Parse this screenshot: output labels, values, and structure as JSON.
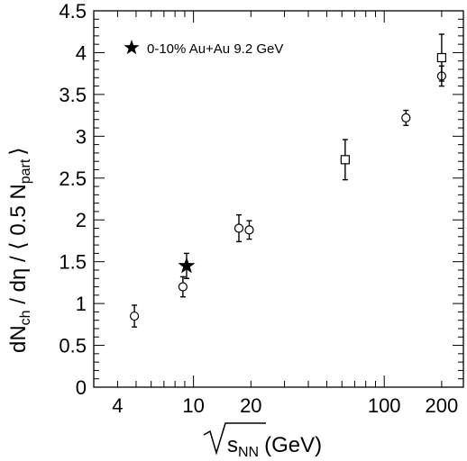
{
  "chart_data": {
    "type": "scatter",
    "xscale": "log",
    "xlim": [
      3,
      260
    ],
    "ylim": [
      0,
      4.5
    ],
    "grid": false,
    "legend_position": "top-left",
    "xlabel": {
      "radicand": "s",
      "sub": "NN",
      "unit": "(GeV)"
    },
    "ylabel": {
      "a": "dN",
      "a_sub": "ch",
      "b": " / dη / ⟨ 0.5 N",
      "b_sub": "part",
      "c": "⟩"
    },
    "x_ticks": [
      {
        "value": 4,
        "label": "4"
      },
      {
        "value": 10,
        "label": "10"
      },
      {
        "value": 20,
        "label": "20"
      },
      {
        "value": 100,
        "label": "100"
      },
      {
        "value": 200,
        "label": "200"
      }
    ],
    "y_ticks": [
      {
        "value": 0,
        "label": "0"
      },
      {
        "value": 0.5,
        "label": "0.5"
      },
      {
        "value": 1,
        "label": "1"
      },
      {
        "value": 1.5,
        "label": "1.5"
      },
      {
        "value": 2,
        "label": "2"
      },
      {
        "value": 2.5,
        "label": "2.5"
      },
      {
        "value": 3,
        "label": "3"
      },
      {
        "value": 3.5,
        "label": "3.5"
      },
      {
        "value": 4,
        "label": "4"
      },
      {
        "value": 4.5,
        "label": "4.5"
      }
    ],
    "series": [
      {
        "marker": "star",
        "name": "0-10% Au+Au 9.2 GeV",
        "points": [
          {
            "x": 9.2,
            "y": 1.45,
            "err": 0.15
          }
        ]
      },
      {
        "marker": "circle",
        "points": [
          {
            "x": 4.9,
            "y": 0.85,
            "err": 0.13
          },
          {
            "x": 8.8,
            "y": 1.2,
            "err": 0.12
          },
          {
            "x": 17.3,
            "y": 1.9,
            "err": 0.16
          },
          {
            "x": 19.6,
            "y": 1.88,
            "err": 0.11
          },
          {
            "x": 130,
            "y": 3.22,
            "err": 0.09
          },
          {
            "x": 200,
            "y": 3.72,
            "err": 0.12
          }
        ]
      },
      {
        "marker": "square",
        "points": [
          {
            "x": 62.4,
            "y": 2.72,
            "err": 0.24
          },
          {
            "x": 200,
            "y": 3.94,
            "err": 0.28
          }
        ]
      }
    ]
  }
}
